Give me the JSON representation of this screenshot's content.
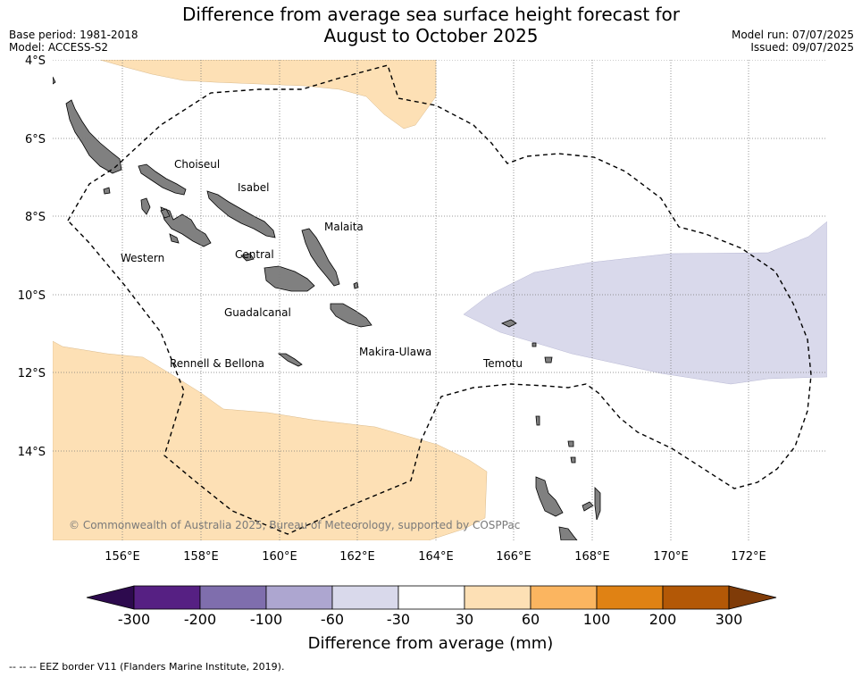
{
  "title_line1": "Difference from average sea surface height forecast for",
  "title_line2": "August to October 2025",
  "base_period": "Base period: 1981-2018",
  "model": "Model: ACCESS-S2",
  "model_run": "Model run: 07/07/2025",
  "issued": "Issued: 09/07/2025",
  "lat_labels": [
    "4°S",
    "6°S",
    "8°S",
    "10°S",
    "12°S",
    "14°S"
  ],
  "lon_labels": [
    "156°E",
    "158°E",
    "160°E",
    "162°E",
    "164°E",
    "166°E",
    "168°E",
    "170°E",
    "172°E"
  ],
  "provinces": {
    "choiseul": "Choiseul",
    "isabel": "Isabel",
    "malaita": "Malaita",
    "western": "Western",
    "central": "Central",
    "guadalcanal": "Guadalcanal",
    "makira": "Makira-Ulawa",
    "rennell": "Rennell & Bellona",
    "temotu": "Temotu"
  },
  "credit": "© Commonwealth of Australia 2025, Bureau of Meteorology, supported by COSPPac",
  "colorbar": {
    "title": "Difference from average (mm)",
    "ticks": [
      "-300",
      "-200",
      "-100",
      "-60",
      "-30",
      "30",
      "60",
      "100",
      "200",
      "300"
    ],
    "colors": [
      "#2d0a4e",
      "#562083",
      "#7f6ead",
      "#ada6d0",
      "#d9d9eb",
      "#ffffff",
      "#fde0b5",
      "#fbb560",
      "#e08214",
      "#b35806",
      "#7f3b08"
    ]
  },
  "footnote": "--  --  -- EEZ border V11 (Flanders Marine Institute, 2019)."
}
